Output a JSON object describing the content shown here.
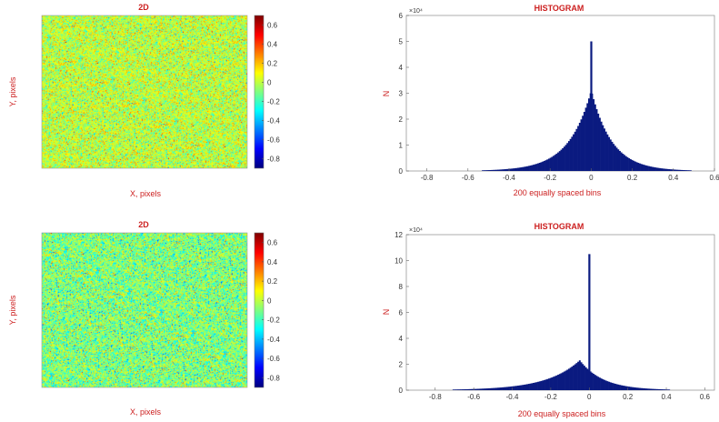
{
  "colors": {
    "title": "#cc1f1f",
    "bar": "#0a1a80",
    "axis": "#333333"
  },
  "colormap": "jet",
  "chart_data": [
    {
      "type": "heatmap",
      "title": "2D",
      "xlabel": "X, pixels",
      "ylabel": "Y, pixels",
      "colorbar": {
        "ticks": [
          "0.6",
          "0.4",
          "0.2",
          "0",
          "-0.2",
          "-0.4",
          "-0.6",
          "-0.8"
        ],
        "range": [
          -0.9,
          0.7
        ]
      },
      "value_distribution": {
        "mean": 0.0,
        "spread": 0.14
      },
      "grid": false
    },
    {
      "type": "bar",
      "title": "HISTOGRAM",
      "xlabel": "200 equally spaced bins",
      "ylabel": "N",
      "exponent_label": "×10⁴",
      "xlim": [
        -0.9,
        0.6
      ],
      "ylim": [
        0,
        6
      ],
      "xticks": [
        "-0.8",
        "-0.6",
        "-0.4",
        "-0.2",
        "0",
        "0.2",
        "0.4",
        "0.6"
      ],
      "yticks": [
        "0",
        "1",
        "2",
        "3",
        "4",
        "5",
        "6"
      ],
      "bins": 200,
      "shape": {
        "peak": 3.1,
        "center": 0.0,
        "left_width": 0.11,
        "right_width": 0.1,
        "spike_at": 0.0,
        "spike_height": 5.0
      },
      "grid": false
    },
    {
      "type": "heatmap",
      "title": "2D",
      "xlabel": "X, pixels",
      "ylabel": "Y, pixels",
      "colorbar": {
        "ticks": [
          "0.6",
          "0.4",
          "0.2",
          "0",
          "-0.2",
          "-0.4",
          "-0.6",
          "-0.8"
        ],
        "range": [
          -0.9,
          0.7
        ]
      },
      "value_distribution": {
        "mean": -0.1,
        "spread": 0.16
      },
      "grid": false
    },
    {
      "type": "bar",
      "title": "HISTOGRAM",
      "xlabel": "200 equally spaced bins",
      "ylabel": "N",
      "exponent_label": "×10⁴",
      "xlim": [
        -0.95,
        0.65
      ],
      "ylim": [
        0,
        12
      ],
      "xticks": [
        "-0.8",
        "-0.6",
        "-0.4",
        "-0.2",
        "0",
        "0.2",
        "0.4",
        "0.6"
      ],
      "yticks": [
        "0",
        "2",
        "4",
        "6",
        "8",
        "10",
        "12"
      ],
      "bins": 200,
      "shape": {
        "peak": 2.3,
        "center": -0.05,
        "left_width": 0.17,
        "right_width": 0.12,
        "spike_at": 0.0,
        "spike_height": 10.5
      },
      "grid": false
    }
  ]
}
